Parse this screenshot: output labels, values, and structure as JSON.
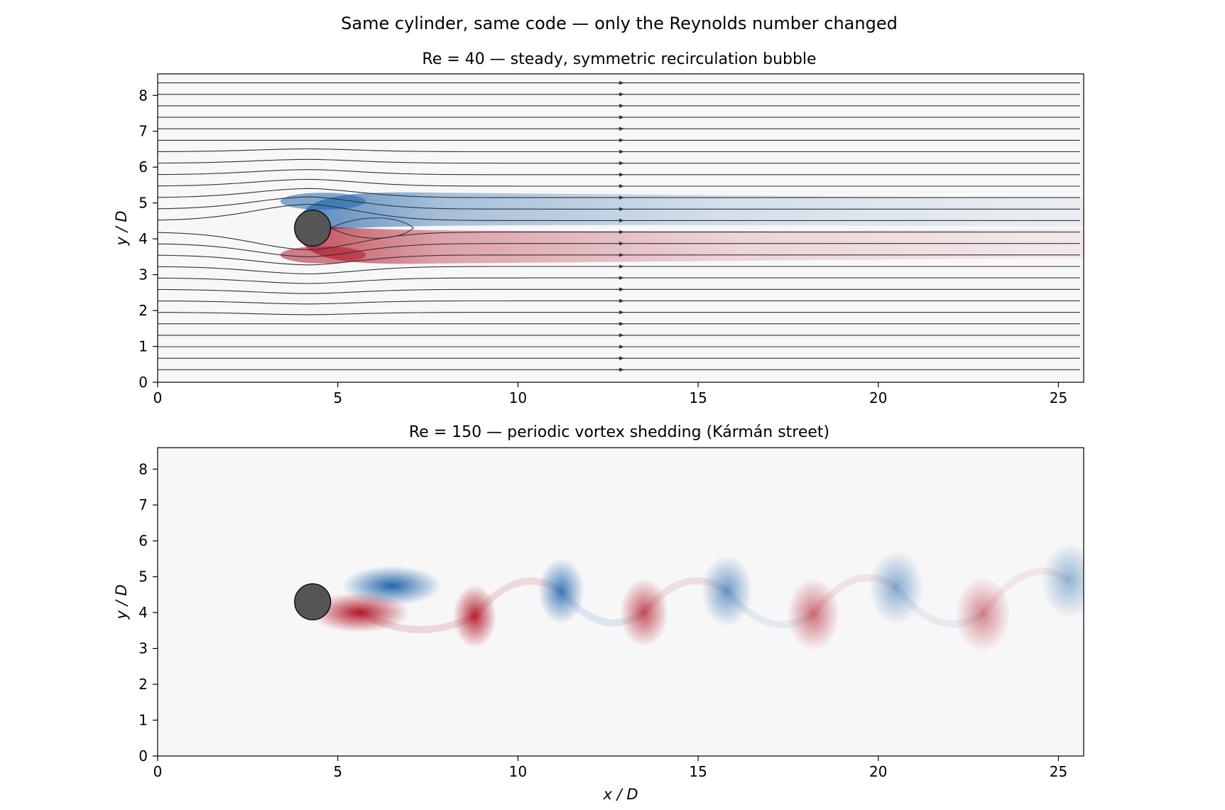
{
  "figure": {
    "suptitle": "Same cylinder, same code — only the Reynolds number changed"
  },
  "chart_data": [
    {
      "type": "heatmap",
      "title": "Re = 40 — steady, symmetric recirculation bubble",
      "xlabel": "",
      "ylabel": "y / D",
      "xlim": [
        0,
        25.7
      ],
      "ylim": [
        0,
        8.6
      ],
      "xticks": [
        0,
        5,
        10,
        15,
        20,
        25
      ],
      "yticks": [
        0,
        1,
        2,
        3,
        4,
        5,
        6,
        7,
        8
      ],
      "cylinder": {
        "x": 4.3,
        "y": 4.3,
        "diameter": 1.0
      },
      "overlay": "streamlines",
      "field": "vorticity",
      "colormap": {
        "negative": "#2166ac",
        "zero": "#f7f7f7",
        "positive": "#b2182b"
      },
      "features": [
        {
          "kind": "shear-layer",
          "sign": "negative",
          "x_start": 3.9,
          "x_end": 25.7,
          "y": 4.85
        },
        {
          "kind": "shear-layer",
          "sign": "positive",
          "x_start": 3.9,
          "x_end": 25.7,
          "y": 3.75
        },
        {
          "kind": "recirculation-bubble",
          "x_start": 4.8,
          "x_end": 7.1,
          "y": 4.3
        }
      ]
    },
    {
      "type": "heatmap",
      "title": "Re = 150 — periodic vortex shedding (Kármán street)",
      "xlabel": "x / D",
      "ylabel": "y / D",
      "xlim": [
        0,
        25.7
      ],
      "ylim": [
        0,
        8.6
      ],
      "xticks": [
        0,
        5,
        10,
        15,
        20,
        25
      ],
      "yticks": [
        0,
        1,
        2,
        3,
        4,
        5,
        6,
        7,
        8
      ],
      "cylinder": {
        "x": 4.3,
        "y": 4.3,
        "diameter": 1.0
      },
      "field": "vorticity",
      "colormap": {
        "negative": "#2166ac",
        "zero": "#f7f7f7",
        "positive": "#b2182b"
      },
      "vortices": [
        {
          "x": 6.5,
          "y": 4.75,
          "sign": "negative",
          "strength": 1.0
        },
        {
          "x": 5.6,
          "y": 4.0,
          "sign": "positive",
          "strength": 1.0
        },
        {
          "x": 8.8,
          "y": 3.9,
          "sign": "positive",
          "strength": 0.85
        },
        {
          "x": 11.2,
          "y": 4.6,
          "sign": "negative",
          "strength": 0.75
        },
        {
          "x": 13.5,
          "y": 4.0,
          "sign": "positive",
          "strength": 0.65
        },
        {
          "x": 15.8,
          "y": 4.6,
          "sign": "negative",
          "strength": 0.55
        },
        {
          "x": 18.2,
          "y": 3.95,
          "sign": "positive",
          "strength": 0.5
        },
        {
          "x": 20.5,
          "y": 4.7,
          "sign": "negative",
          "strength": 0.42
        },
        {
          "x": 22.9,
          "y": 3.95,
          "sign": "positive",
          "strength": 0.4
        },
        {
          "x": 25.3,
          "y": 4.9,
          "sign": "negative",
          "strength": 0.36
        }
      ]
    }
  ]
}
